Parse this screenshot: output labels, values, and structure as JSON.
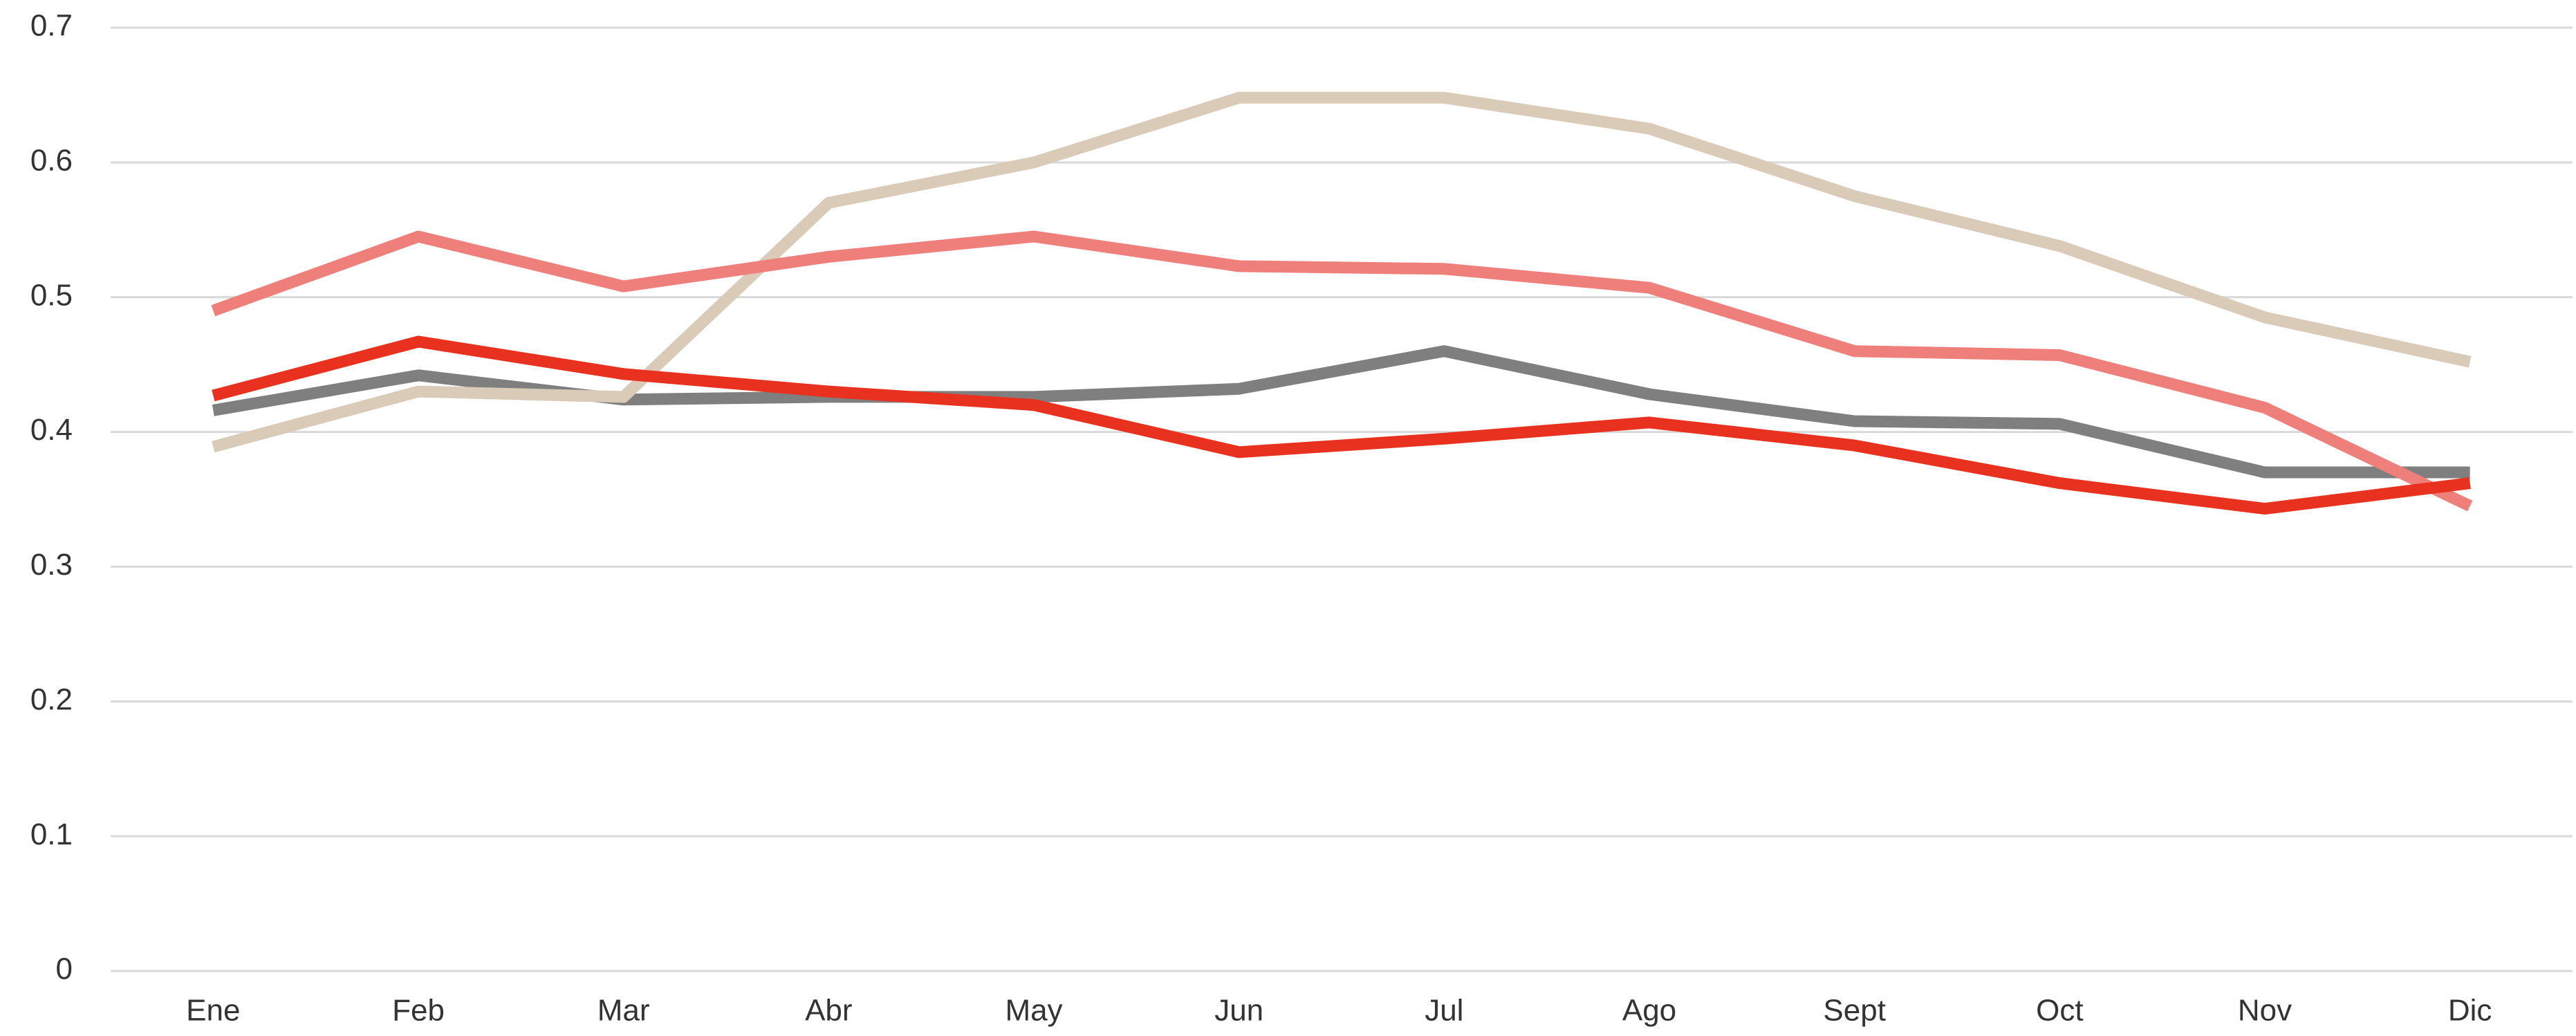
{
  "chart_data": {
    "type": "line",
    "categories": [
      "Ene",
      "Feb",
      "Mar",
      "Abr",
      "May",
      "Jun",
      "Jul",
      "Ago",
      "Sept",
      "Oct",
      "Nov",
      "Dic"
    ],
    "series": [
      {
        "color": "#7f7f7f",
        "values": [
          0.416,
          0.442,
          0.424,
          0.426,
          0.426,
          0.432,
          0.46,
          0.428,
          0.408,
          0.406,
          0.37,
          0.37
        ]
      },
      {
        "color": "#d9cbb8",
        "values": [
          0.389,
          0.43,
          0.426,
          0.57,
          0.6,
          0.648,
          0.648,
          0.625,
          0.575,
          0.538,
          0.485,
          0.452
        ]
      },
      {
        "color": "#ef7f7a",
        "values": [
          0.49,
          0.545,
          0.508,
          0.53,
          0.545,
          0.523,
          0.521,
          0.507,
          0.46,
          0.457,
          0.418,
          0.345
        ]
      },
      {
        "color": "#e8311e",
        "values": [
          0.427,
          0.467,
          0.443,
          0.43,
          0.42,
          0.385,
          0.395,
          0.407,
          0.39,
          0.362,
          0.343,
          0.362
        ]
      }
    ],
    "ylim": [
      0,
      0.7
    ],
    "yticks": [
      0,
      0.1,
      0.2,
      0.3,
      0.4,
      0.5,
      0.6,
      0.7
    ],
    "grid": true
  }
}
